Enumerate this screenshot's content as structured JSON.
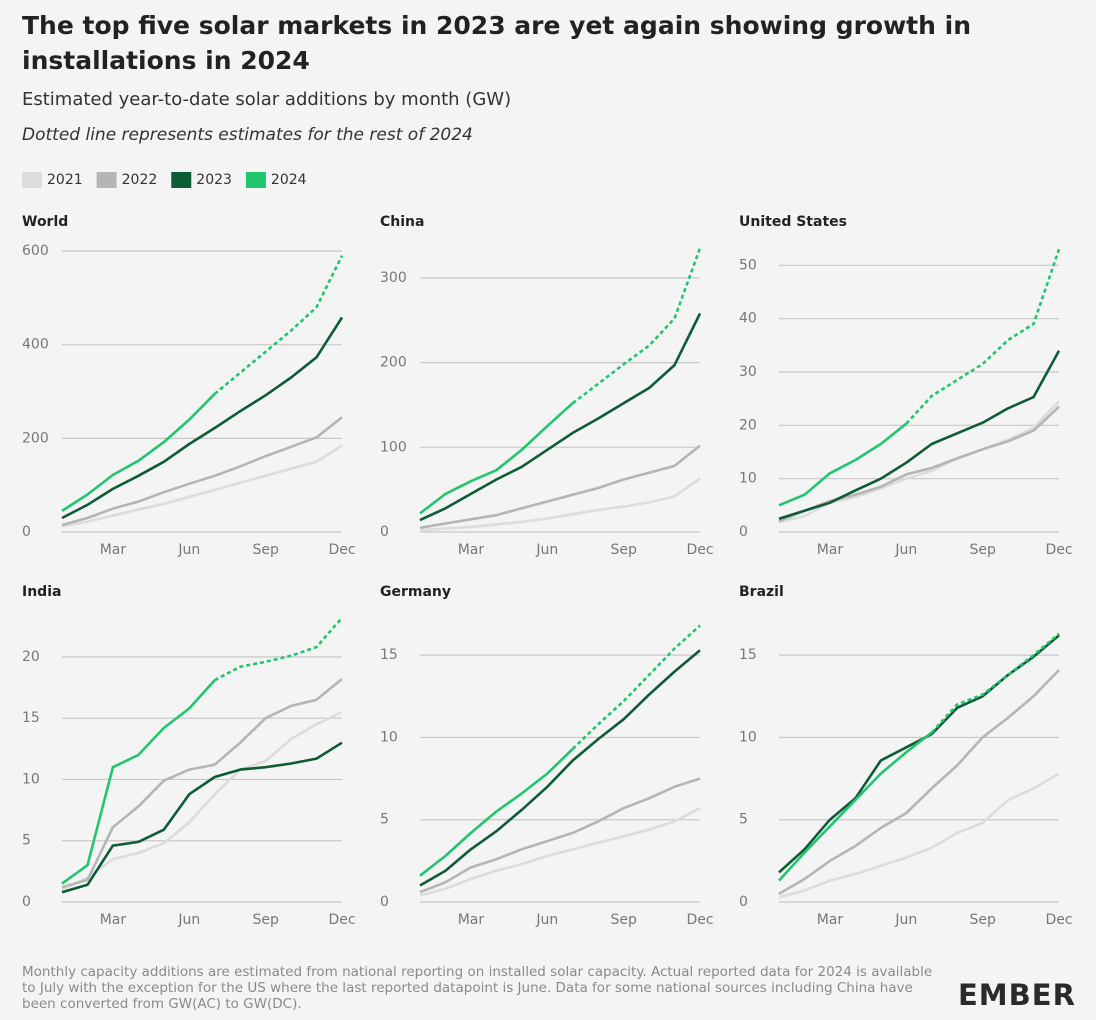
{
  "header": {
    "title": "The top five solar markets in 2023 are yet again showing growth in installations in 2024",
    "subtitle": "Estimated year-to-date solar additions by month (GW)",
    "note": "Dotted line represents estimates for the rest of 2024"
  },
  "footer": {
    "source": "Monthly capacity additions are estimated from national reporting on installed solar capacity. Actual reported data for 2024 is available to July with the exception for the US where the last reported datapoint is June. Data for some national sources including China have been converted from GW(AC) to GW(DC).",
    "logo": "EMBER"
  },
  "chart_data": [
    {
      "type": "line",
      "title": "World",
      "categories": [
        null,
        null,
        "Mar",
        null,
        null,
        "Jun",
        null,
        null,
        "Sep",
        null,
        null,
        "Dec"
      ],
      "ylim": [
        0,
        615
      ],
      "yticks": [
        0,
        200,
        400,
        600
      ],
      "grid": true,
      "series": [
        {
          "name": "2021",
          "color": "#dcdcdc",
          "values": [
            12,
            22,
            35,
            48,
            60,
            75,
            90,
            105,
            120,
            135,
            150,
            185
          ]
        },
        {
          "name": "2022",
          "color": "#b5b5b5",
          "values": [
            15,
            30,
            50,
            65,
            85,
            103,
            120,
            140,
            162,
            182,
            202,
            245
          ]
        },
        {
          "name": "2023",
          "color": "#0e5c36",
          "values": [
            30,
            58,
            92,
            120,
            150,
            188,
            222,
            258,
            292,
            330,
            373,
            458
          ]
        },
        {
          "name": "2024",
          "color": "#22c56f",
          "values": [
            45,
            80,
            122,
            152,
            192,
            240,
            295,
            null,
            null,
            null,
            null,
            null
          ],
          "estimate_values": [
            null,
            null,
            null,
            null,
            null,
            null,
            295,
            340,
            385,
            430,
            480,
            590
          ]
        }
      ]
    },
    {
      "type": "line",
      "title": "China",
      "categories": [
        null,
        null,
        "Mar",
        null,
        null,
        "Jun",
        null,
        null,
        "Sep",
        null,
        null,
        "Dec"
      ],
      "ylim": [
        0,
        340
      ],
      "yticks": [
        0,
        100,
        200,
        300
      ],
      "grid": true,
      "series": [
        {
          "name": "2021",
          "color": "#dcdcdc",
          "values": [
            2,
            4,
            6,
            9,
            12,
            16,
            21,
            26,
            30,
            35,
            42,
            63
          ]
        },
        {
          "name": "2022",
          "color": "#b5b5b5",
          "values": [
            5,
            10,
            15,
            20,
            28,
            36,
            44,
            52,
            62,
            70,
            78,
            102
          ]
        },
        {
          "name": "2023",
          "color": "#0e5c36",
          "values": [
            14,
            28,
            45,
            62,
            77,
            97,
            117,
            134,
            152,
            170,
            197,
            258
          ]
        },
        {
          "name": "2024",
          "color": "#22c56f",
          "values": [
            22,
            45,
            60,
            73,
            97,
            125,
            152,
            null,
            null,
            null,
            null,
            null
          ],
          "estimate_values": [
            null,
            null,
            null,
            null,
            null,
            null,
            152,
            175,
            198,
            220,
            252,
            335
          ]
        }
      ]
    },
    {
      "type": "line",
      "title": "United States",
      "categories": [
        null,
        null,
        "Mar",
        null,
        null,
        "Jun",
        null,
        null,
        "Sep",
        null,
        null,
        "Dec"
      ],
      "ylim": [
        0,
        54
      ],
      "yticks": [
        0,
        10,
        20,
        30,
        40,
        50
      ],
      "grid": true,
      "series": [
        {
          "name": "2021",
          "color": "#dcdcdc",
          "values": [
            1.8,
            3,
            5.5,
            6.5,
            8.2,
            10,
            11.5,
            13.8,
            15.5,
            17.3,
            19.5,
            24.5
          ]
        },
        {
          "name": "2022",
          "color": "#b5b5b5",
          "values": [
            2,
            4,
            5.8,
            7,
            8.5,
            10.8,
            12,
            13.8,
            15.5,
            17,
            19,
            23.5
          ]
        },
        {
          "name": "2023",
          "color": "#0e5c36",
          "values": [
            2.5,
            4,
            5.5,
            7.8,
            10,
            13,
            16.5,
            18.5,
            20.5,
            23.2,
            25.3,
            34
          ]
        },
        {
          "name": "2024",
          "color": "#22c56f",
          "values": [
            5,
            7,
            11,
            13.5,
            16.5,
            20.3,
            null,
            null,
            null,
            null,
            null,
            null
          ],
          "estimate_values": [
            null,
            null,
            null,
            null,
            null,
            20.3,
            25.5,
            28.5,
            31.5,
            36,
            39,
            53
          ]
        }
      ]
    },
    {
      "type": "line",
      "title": "India",
      "categories": [
        null,
        null,
        "Mar",
        null,
        null,
        "Jun",
        null,
        null,
        "Sep",
        null,
        null,
        "Dec"
      ],
      "ylim": [
        0,
        23.5
      ],
      "yticks": [
        0,
        5,
        10,
        15,
        20
      ],
      "grid": true,
      "series": [
        {
          "name": "2021",
          "color": "#dcdcdc",
          "values": [
            1,
            2,
            3.5,
            4,
            4.8,
            6.5,
            8.8,
            10.8,
            11.5,
            13.3,
            14.5,
            15.5
          ]
        },
        {
          "name": "2022",
          "color": "#b5b5b5",
          "values": [
            1.2,
            1.8,
            6.1,
            7.8,
            9.9,
            10.8,
            11.2,
            13,
            15,
            16,
            16.5,
            18.2
          ]
        },
        {
          "name": "2023",
          "color": "#0e5c36",
          "values": [
            0.8,
            1.4,
            4.6,
            4.9,
            5.9,
            8.8,
            10.2,
            10.8,
            11,
            11.3,
            11.7,
            13
          ]
        },
        {
          "name": "2024",
          "color": "#22c56f",
          "values": [
            1.5,
            3,
            11,
            12,
            14.2,
            15.8,
            18.1,
            null,
            null,
            null,
            null,
            null
          ],
          "estimate_values": [
            null,
            null,
            null,
            null,
            null,
            null,
            18.1,
            19.2,
            19.6,
            20.1,
            20.8,
            23.2
          ]
        }
      ]
    },
    {
      "type": "line",
      "title": "Germany",
      "categories": [
        null,
        null,
        "Mar",
        null,
        null,
        "Jun",
        null,
        null,
        "Sep",
        null,
        null,
        "Dec"
      ],
      "ylim": [
        0,
        17.5
      ],
      "yticks": [
        0,
        5,
        10,
        15
      ],
      "grid": true,
      "series": [
        {
          "name": "2021",
          "color": "#dcdcdc",
          "values": [
            0.4,
            0.8,
            1.4,
            1.9,
            2.3,
            2.8,
            3.2,
            3.6,
            4,
            4.4,
            4.9,
            5.7
          ]
        },
        {
          "name": "2022",
          "color": "#b5b5b5",
          "values": [
            0.6,
            1.2,
            2.1,
            2.6,
            3.2,
            3.7,
            4.2,
            4.9,
            5.7,
            6.3,
            7,
            7.5
          ]
        },
        {
          "name": "2023",
          "color": "#0e5c36",
          "values": [
            1,
            1.9,
            3.2,
            4.3,
            5.6,
            7,
            8.6,
            9.9,
            11.1,
            12.6,
            14,
            15.3
          ]
        },
        {
          "name": "2024",
          "color": "#22c56f",
          "values": [
            1.6,
            2.8,
            4.2,
            5.5,
            6.6,
            7.8,
            9.3,
            null,
            null,
            null,
            null,
            null
          ],
          "estimate_values": [
            null,
            null,
            null,
            null,
            null,
            null,
            9.3,
            10.8,
            12.2,
            13.8,
            15.4,
            16.8
          ]
        }
      ]
    },
    {
      "type": "line",
      "title": "Brazil",
      "categories": [
        null,
        null,
        "Mar",
        null,
        null,
        "Jun",
        null,
        null,
        "Sep",
        null,
        null,
        "Dec"
      ],
      "ylim": [
        0,
        17.5
      ],
      "yticks": [
        0,
        5,
        10,
        15
      ],
      "grid": true,
      "series": [
        {
          "name": "2021",
          "color": "#dcdcdc",
          "values": [
            0.3,
            0.7,
            1.3,
            1.7,
            2.2,
            2.7,
            3.3,
            4.2,
            4.8,
            6.2,
            6.9,
            7.8
          ]
        },
        {
          "name": "2022",
          "color": "#b5b5b5",
          "values": [
            0.5,
            1.4,
            2.5,
            3.4,
            4.5,
            5.4,
            6.9,
            8.3,
            10,
            11.2,
            12.5,
            14.1
          ]
        },
        {
          "name": "2023",
          "color": "#0e5c36",
          "values": [
            1.8,
            3.2,
            5,
            6.3,
            8.6,
            9.4,
            10.2,
            11.8,
            12.5,
            13.8,
            14.9,
            16.2
          ]
        },
        {
          "name": "2024",
          "color": "#22c56f",
          "values": [
            1.3,
            3,
            4.6,
            6.2,
            7.8,
            9.1,
            10.3,
            null,
            null,
            null,
            null,
            null
          ],
          "estimate_values": [
            null,
            null,
            null,
            null,
            null,
            null,
            10.3,
            12,
            12.6,
            13.8,
            15,
            16.3
          ]
        }
      ]
    }
  ]
}
